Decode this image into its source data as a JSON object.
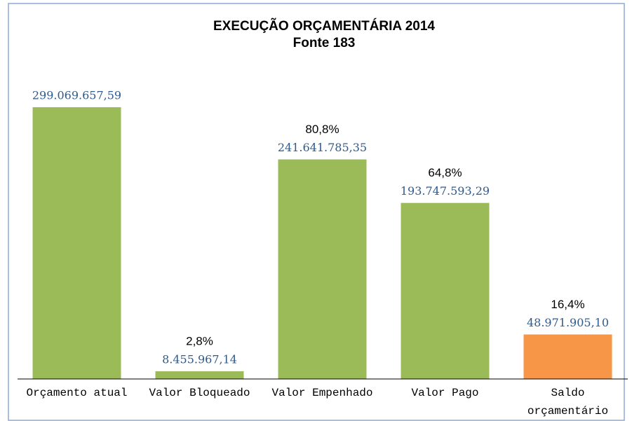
{
  "chart_data": {
    "type": "bar",
    "title": "EXECUÇÃO ORÇAMENTÁRIA 2014",
    "subtitle": "Fonte 183",
    "categories": [
      "Orçamento atual",
      "Valor Bloqueado",
      "Valor Empenhado",
      "Valor Pago",
      "Saldo orçamentário"
    ],
    "values": [
      299069657.59,
      8455967.14,
      241641785.35,
      193747593.29,
      48971905.1
    ],
    "value_labels": [
      "299.069.657,59",
      "8.455.967,14",
      "241.641.785,35",
      "193.747.593,29",
      "48.971.905,10"
    ],
    "annotations": [
      null,
      "2,8%",
      "80,8%",
      "64,8%",
      "16,4%"
    ],
    "colors": [
      "#9bbb59",
      "#9bbb59",
      "#9bbb59",
      "#9bbb59",
      "#f79646"
    ],
    "ylim": [
      0,
      350000000
    ]
  }
}
